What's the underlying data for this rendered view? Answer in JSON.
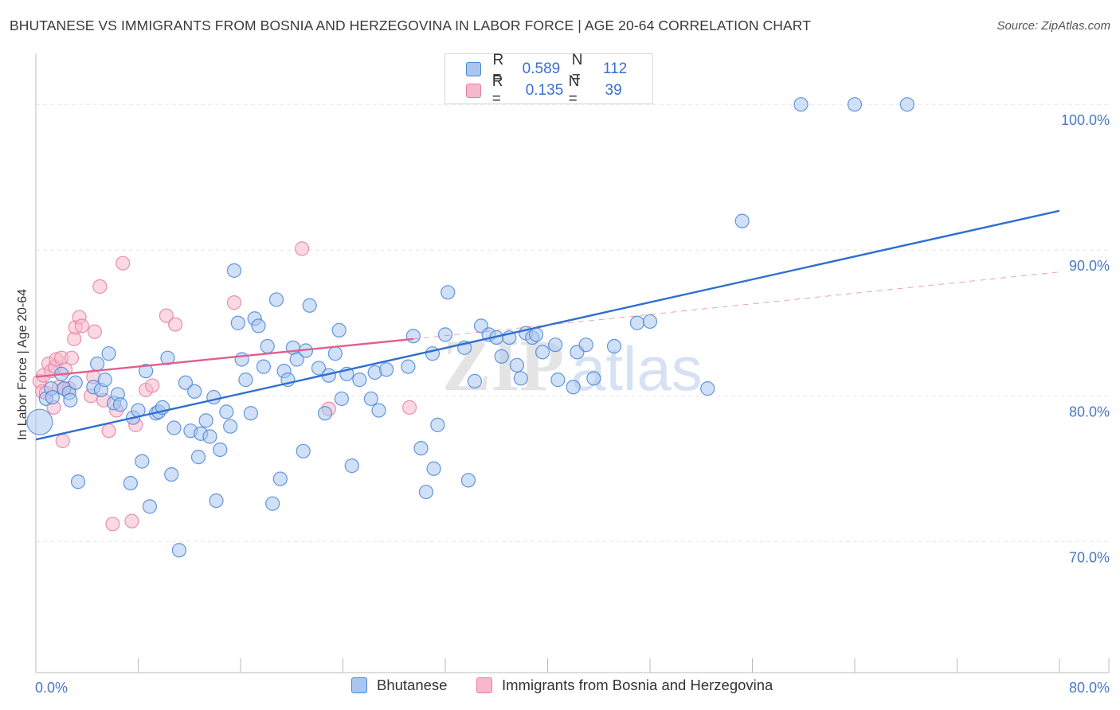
{
  "header": {
    "title": "BHUTANESE VS IMMIGRANTS FROM BOSNIA AND HERZEGOVINA IN LABOR FORCE | AGE 20-64 CORRELATION CHART",
    "source": "Source: ZipAtlas.com"
  },
  "watermark": {
    "part1": "ZIP",
    "part2": "atlas"
  },
  "colors": {
    "blue": "#4a86d8",
    "blue_fill": "#a9c6ef",
    "blue_line": "#2f6fd0",
    "pink": "#e87fa0",
    "pink_fill": "#f6b9cc",
    "pink_line": "#e06090",
    "tick_text": "#4a78c4",
    "grid": "#e6e6e6"
  },
  "legend": {
    "rows": [
      {
        "r_label": "R =",
        "r_value": "0.589",
        "n_label": "N =",
        "n_value": "112",
        "swatch": "blue"
      },
      {
        "r_label": "R =",
        "r_value": "0.135",
        "n_label": "N =",
        "n_value": "39",
        "swatch": "pink"
      }
    ]
  },
  "bottom_legend": {
    "items": [
      {
        "label": "Bhutanese",
        "swatch": "blue"
      },
      {
        "label": "Immigrants from Bosnia and Herzegovina",
        "swatch": "pink"
      }
    ]
  },
  "chart_data": {
    "type": "scatter",
    "title": "BHUTANESE VS IMMIGRANTS FROM BOSNIA AND HERZEGOVINA IN LABOR FORCE | AGE 20-64 CORRELATION CHART",
    "xlabel": "",
    "ylabel": "In Labor Force | Age 20-64",
    "xlim": [
      0,
      80
    ],
    "ylim": [
      61,
      104
    ],
    "x_tick_labels": [
      {
        "value": 0,
        "label": "0.0%"
      },
      {
        "value": 80,
        "label": "80.0%"
      }
    ],
    "y_tick_labels": [
      {
        "value": 70,
        "label": "70.0%"
      },
      {
        "value": 80,
        "label": "80.0%"
      },
      {
        "value": 90,
        "label": "90.0%"
      },
      {
        "value": 100,
        "label": "100.0%"
      }
    ],
    "grid": true,
    "legend_position": "top-center",
    "series": [
      {
        "name": "Bhutanese",
        "color": "blue",
        "trend": {
          "x0": 0,
          "y0": 77.0,
          "x1": 80,
          "y1": 92.7
        },
        "points": [
          [
            0.3,
            78.2
          ],
          [
            0.8,
            79.8
          ],
          [
            1.2,
            80.5
          ],
          [
            1.3,
            79.9
          ],
          [
            2.0,
            81.5
          ],
          [
            2.2,
            80.5
          ],
          [
            2.6,
            80.2
          ],
          [
            2.7,
            79.7
          ],
          [
            3.1,
            80.9
          ],
          [
            3.3,
            74.1
          ],
          [
            4.5,
            80.6
          ],
          [
            4.8,
            82.2
          ],
          [
            5.1,
            80.4
          ],
          [
            5.4,
            81.1
          ],
          [
            5.7,
            82.9
          ],
          [
            6.1,
            79.5
          ],
          [
            6.4,
            80.1
          ],
          [
            6.6,
            79.4
          ],
          [
            7.4,
            74.0
          ],
          [
            7.6,
            78.5
          ],
          [
            8.0,
            79.0
          ],
          [
            8.3,
            75.5
          ],
          [
            8.6,
            81.7
          ],
          [
            8.9,
            72.4
          ],
          [
            9.4,
            78.8
          ],
          [
            9.6,
            78.9
          ],
          [
            9.9,
            79.2
          ],
          [
            10.3,
            82.6
          ],
          [
            10.6,
            74.6
          ],
          [
            10.8,
            77.8
          ],
          [
            11.2,
            69.4
          ],
          [
            11.7,
            80.9
          ],
          [
            12.1,
            77.6
          ],
          [
            12.4,
            80.3
          ],
          [
            12.7,
            75.8
          ],
          [
            12.9,
            77.4
          ],
          [
            13.3,
            78.3
          ],
          [
            13.6,
            77.2
          ],
          [
            13.9,
            79.9
          ],
          [
            14.1,
            72.8
          ],
          [
            14.4,
            76.3
          ],
          [
            14.9,
            78.9
          ],
          [
            15.2,
            77.9
          ],
          [
            15.5,
            88.6
          ],
          [
            15.8,
            85.0
          ],
          [
            16.1,
            82.5
          ],
          [
            16.4,
            81.1
          ],
          [
            16.8,
            78.8
          ],
          [
            17.1,
            85.3
          ],
          [
            17.4,
            84.8
          ],
          [
            17.8,
            82.0
          ],
          [
            18.1,
            83.4
          ],
          [
            18.5,
            72.6
          ],
          [
            18.8,
            86.6
          ],
          [
            19.1,
            74.3
          ],
          [
            19.4,
            81.7
          ],
          [
            19.7,
            81.1
          ],
          [
            20.1,
            83.3
          ],
          [
            20.4,
            82.5
          ],
          [
            20.9,
            76.2
          ],
          [
            21.1,
            83.1
          ],
          [
            21.4,
            86.2
          ],
          [
            22.1,
            81.9
          ],
          [
            22.6,
            78.8
          ],
          [
            22.9,
            81.4
          ],
          [
            23.4,
            82.9
          ],
          [
            23.7,
            84.5
          ],
          [
            23.9,
            79.8
          ],
          [
            24.3,
            81.5
          ],
          [
            24.7,
            75.2
          ],
          [
            25.3,
            81.1
          ],
          [
            26.2,
            79.8
          ],
          [
            26.5,
            81.6
          ],
          [
            26.8,
            79.0
          ],
          [
            27.4,
            81.8
          ],
          [
            29.1,
            82.0
          ],
          [
            29.5,
            84.1
          ],
          [
            30.1,
            76.4
          ],
          [
            30.5,
            73.4
          ],
          [
            31.0,
            82.9
          ],
          [
            31.1,
            75.0
          ],
          [
            31.4,
            78.0
          ],
          [
            32.0,
            84.2
          ],
          [
            32.2,
            87.1
          ],
          [
            33.5,
            83.3
          ],
          [
            33.8,
            74.2
          ],
          [
            34.3,
            81.0
          ],
          [
            34.8,
            84.8
          ],
          [
            35.4,
            84.2
          ],
          [
            36.0,
            84.0
          ],
          [
            36.4,
            82.7
          ],
          [
            37.0,
            84.0
          ],
          [
            37.6,
            82.1
          ],
          [
            37.9,
            81.2
          ],
          [
            38.3,
            84.3
          ],
          [
            38.8,
            84.0
          ],
          [
            39.1,
            84.2
          ],
          [
            39.6,
            83.0
          ],
          [
            40.6,
            83.5
          ],
          [
            40.8,
            81.1
          ],
          [
            42.0,
            80.6
          ],
          [
            42.3,
            83.0
          ],
          [
            43.0,
            83.5
          ],
          [
            43.6,
            81.2
          ],
          [
            45.2,
            83.4
          ],
          [
            47.0,
            85.0
          ],
          [
            48.0,
            85.1
          ],
          [
            52.5,
            80.5
          ],
          [
            55.2,
            92.0
          ],
          [
            59.8,
            100.0
          ],
          [
            64.0,
            100.0
          ],
          [
            68.1,
            100.0
          ]
        ]
      },
      {
        "name": "Immigrants from Bosnia and Herzegovina",
        "color": "pink",
        "trend": {
          "x0": 0,
          "y0": 81.3,
          "x1": 29.5,
          "y1": 83.9,
          "dashed_to_x": 80,
          "dashed_to_y": 88.5
        },
        "points": [
          [
            0.3,
            81.0
          ],
          [
            0.5,
            80.3
          ],
          [
            0.6,
            81.4
          ],
          [
            0.8,
            80.2
          ],
          [
            1.0,
            82.2
          ],
          [
            1.2,
            81.7
          ],
          [
            1.4,
            79.2
          ],
          [
            1.5,
            82.0
          ],
          [
            1.6,
            82.5
          ],
          [
            1.8,
            80.6
          ],
          [
            2.0,
            82.6
          ],
          [
            2.1,
            76.9
          ],
          [
            2.2,
            80.5
          ],
          [
            2.3,
            81.8
          ],
          [
            2.6,
            80.5
          ],
          [
            2.8,
            82.6
          ],
          [
            3.0,
            83.9
          ],
          [
            3.1,
            84.7
          ],
          [
            3.4,
            85.4
          ],
          [
            3.6,
            84.8
          ],
          [
            4.3,
            80.0
          ],
          [
            4.5,
            81.3
          ],
          [
            4.6,
            84.4
          ],
          [
            5.0,
            87.5
          ],
          [
            5.3,
            79.7
          ],
          [
            5.7,
            77.6
          ],
          [
            6.0,
            71.2
          ],
          [
            6.3,
            79.0
          ],
          [
            6.8,
            89.1
          ],
          [
            7.5,
            71.4
          ],
          [
            7.8,
            78.0
          ],
          [
            8.6,
            80.4
          ],
          [
            9.1,
            80.7
          ],
          [
            10.2,
            85.5
          ],
          [
            10.9,
            84.9
          ],
          [
            15.5,
            86.4
          ],
          [
            20.8,
            90.1
          ],
          [
            22.9,
            79.1
          ],
          [
            29.2,
            79.2
          ]
        ]
      }
    ]
  }
}
